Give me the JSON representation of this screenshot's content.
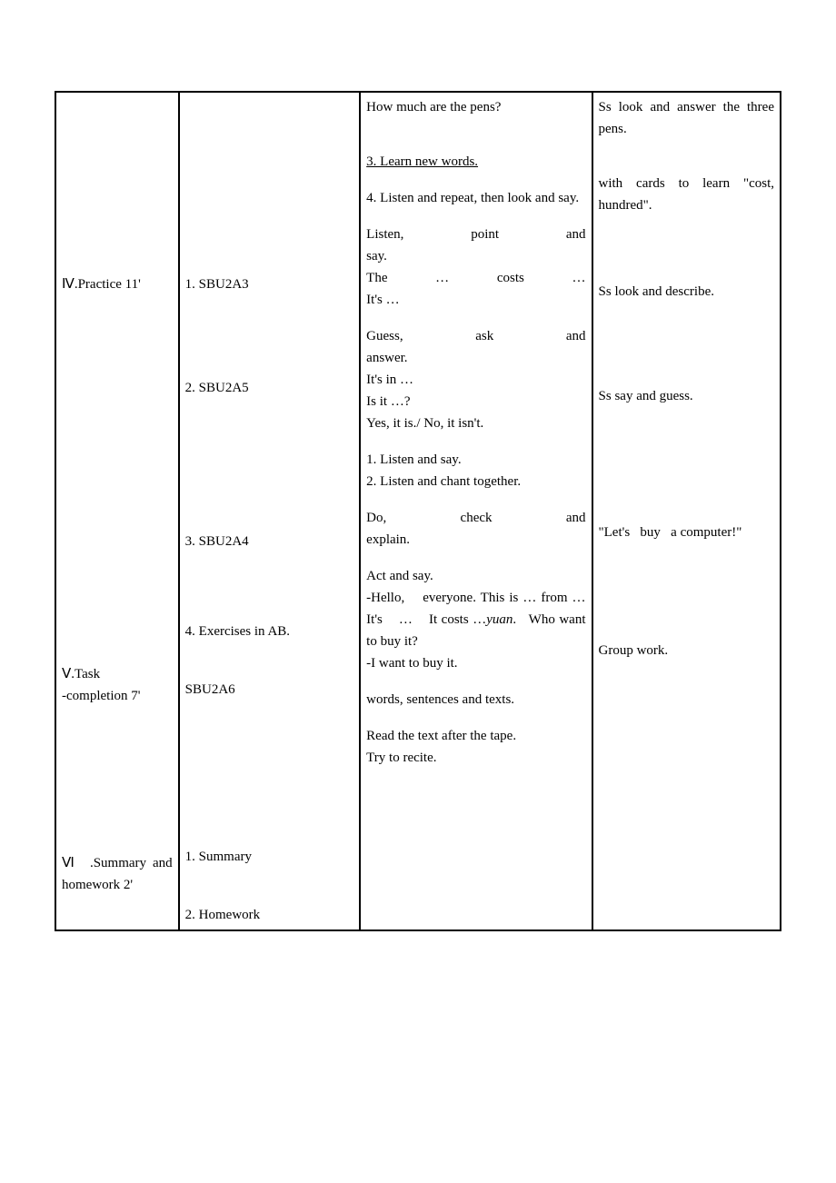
{
  "table": {
    "border_color": "#000000",
    "background_color": "#ffffff",
    "font_family": "SimSun",
    "font_size_pt": 11,
    "col_widths": [
      "17%",
      "25%",
      "32%",
      "26%"
    ],
    "sections": {
      "practice": {
        "header": "Ⅳ.Practice 11'",
        "items": [
          {
            "label": "1. SBU2A3"
          },
          {
            "label": "2. SBU2A5"
          },
          {
            "label": "3. SBU2A4"
          },
          {
            "label": "4. Exercises in AB."
          }
        ]
      },
      "task": {
        "header": "Ⅴ.Task -completion 7'",
        "items": [
          {
            "label": "SBU2A6"
          }
        ]
      },
      "summary": {
        "header": "Ⅵ .Summary and homework 2'",
        "items": [
          {
            "label": "1. Summary"
          },
          {
            "label": "2. Homework"
          }
        ]
      }
    },
    "col3_content": {
      "q1": "How much are the pens?",
      "step3": "3. Learn new words.",
      "step4": "4. Listen and repeat, then look and say.",
      "practice1_a": "Listen, point and say.",
      "practice1_b": "The … costs … It's …",
      "practice2_a": "Guess, ask and answer.",
      "practice2_b": "It's in …",
      "practice2_c": "Is it …?",
      "practice2_d": "Yes, it is./ No, it isn't.",
      "practice3_a": "1. Listen and say.",
      "practice3_b": "2. Listen and chant together.",
      "practice4": "Do, check and explain.",
      "task_a": "Act and say.",
      "task_b": "-Hello, everyone. This is … from … It's … It costs …",
      "task_b_italic": "yuan",
      "task_b_end": ". Who want to buy it?",
      "task_c": "-I want to buy it.",
      "summary_text": "words, sentences and texts.",
      "homework_a": "Read the text after the tape.",
      "homework_b": "Try to recite."
    },
    "col4_content": {
      "r1": "Ss look and answer the three pens.",
      "r2": "with cards to learn \"cost, hundred\".",
      "r3": "Ss look and describe.",
      "r4": "Ss say and guess.",
      "r5": "\"Let's buy a computer!\"",
      "r6": "Group work."
    }
  }
}
